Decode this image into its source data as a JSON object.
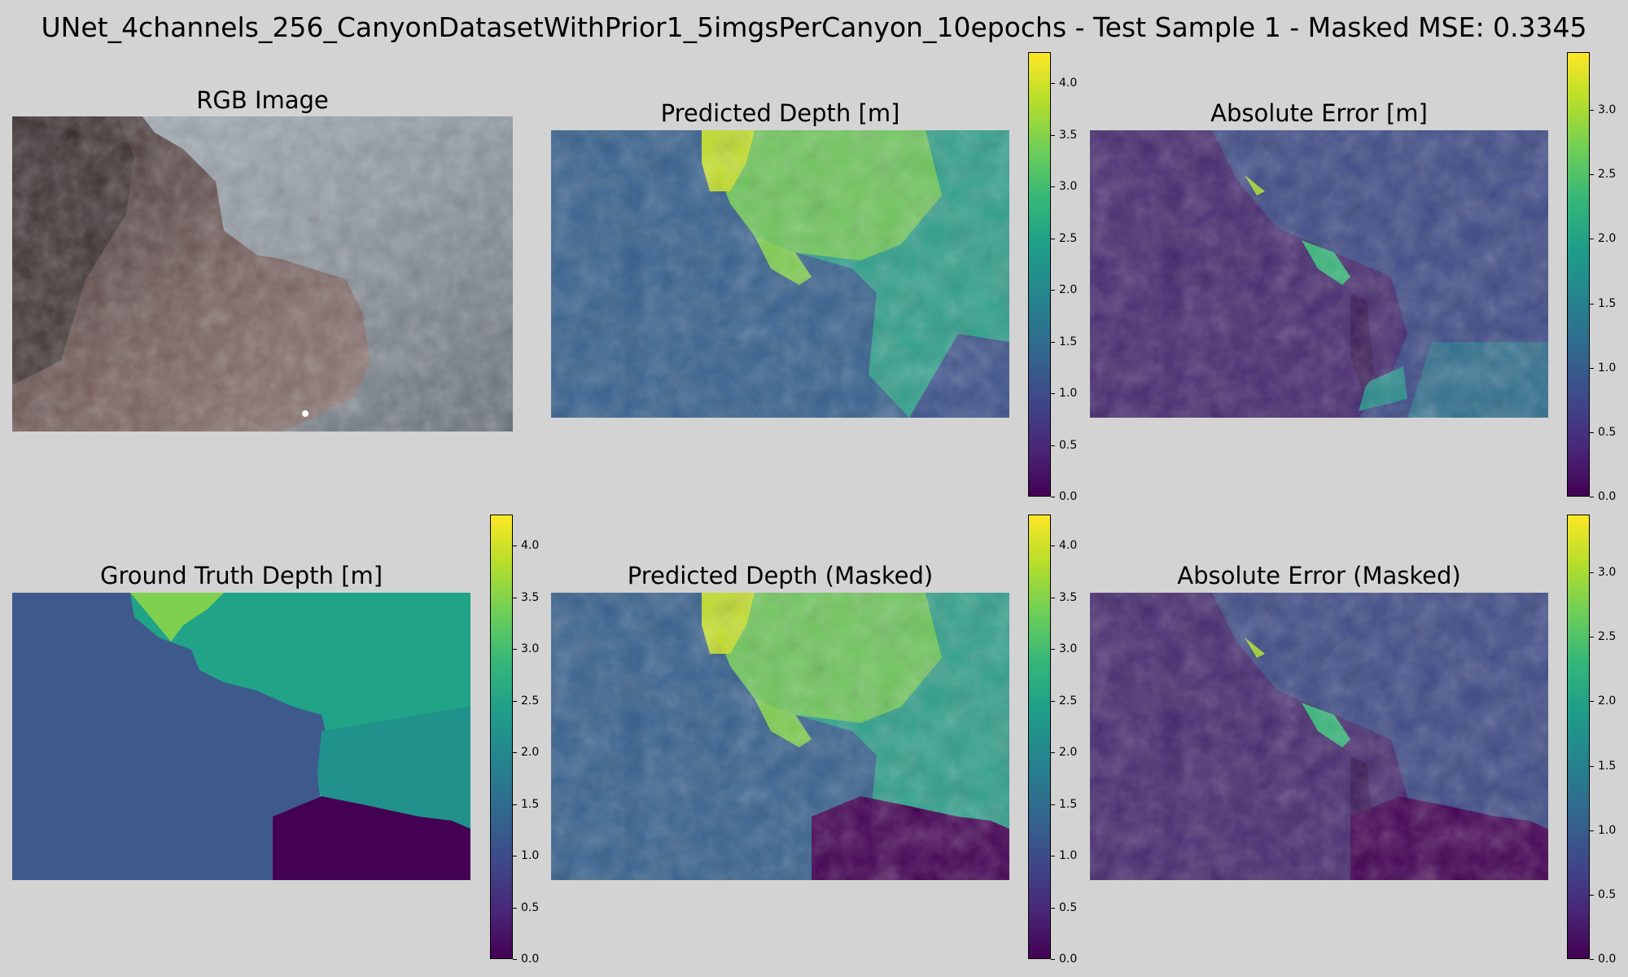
{
  "figure": {
    "suptitle": "UNet_4channels_256_CanyonDatasetWithPrior1_5imgsPerCanyon_10epochs - Test Sample 1 - Masked MSE: 0.3345"
  },
  "panels": {
    "rgb": {
      "title": "RGB Image"
    },
    "pred": {
      "title": "Predicted Depth [m]",
      "ticks": [
        "0.0",
        "0.5",
        "1.0",
        "1.5",
        "2.0",
        "2.5",
        "3.0",
        "3.5",
        "4.0"
      ],
      "vmax": 4.3
    },
    "err": {
      "title": "Absolute Error [m]",
      "ticks": [
        "0.0",
        "0.5",
        "1.0",
        "1.5",
        "2.0",
        "2.5",
        "3.0"
      ],
      "vmax": 3.45
    },
    "gt": {
      "title": "Ground Truth Depth [m]",
      "ticks": [
        "0.0",
        "0.5",
        "1.0",
        "1.5",
        "2.0",
        "2.5",
        "3.0",
        "3.5",
        "4.0"
      ],
      "vmax": 4.3
    },
    "pred_masked": {
      "title": "Predicted Depth (Masked)",
      "ticks": [
        "0.0",
        "0.5",
        "1.0",
        "1.5",
        "2.0",
        "2.5",
        "3.0",
        "3.5",
        "4.0"
      ],
      "vmax": 4.3
    },
    "err_masked": {
      "title": "Absolute Error (Masked)",
      "ticks": [
        "0.0",
        "0.5",
        "1.0",
        "1.5",
        "2.0",
        "2.5",
        "3.0"
      ],
      "vmax": 3.45
    }
  },
  "colormap": {
    "name": "viridis",
    "stops": [
      "#440154",
      "#482878",
      "#3e4989",
      "#31688e",
      "#26828e",
      "#1f9e89",
      "#35b779",
      "#6ece58",
      "#b5de2b",
      "#fde725"
    ]
  }
}
